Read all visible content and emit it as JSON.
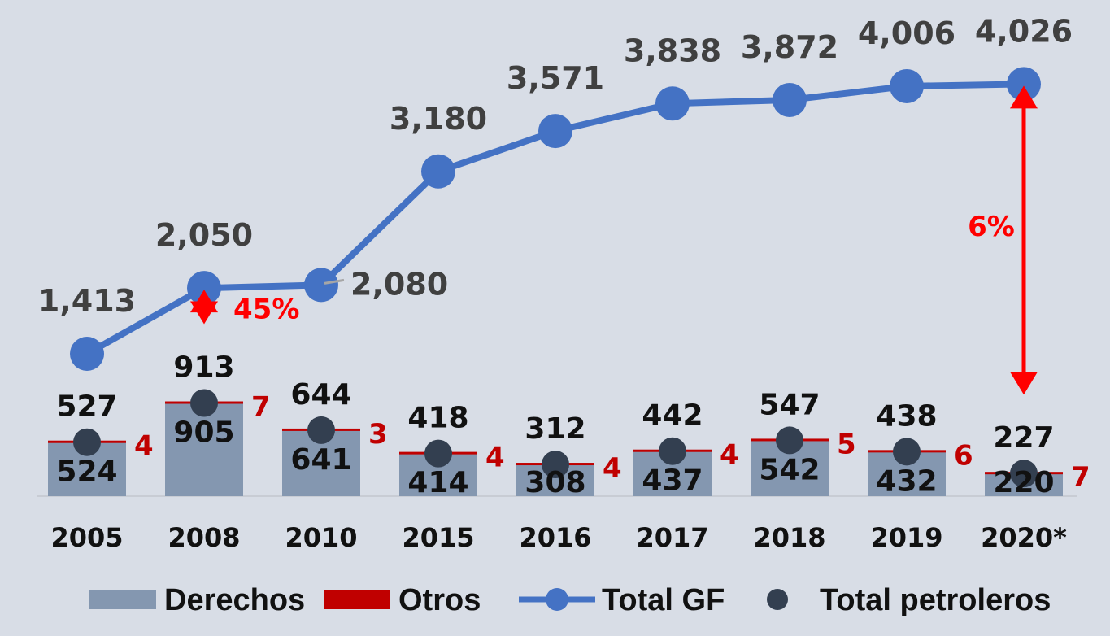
{
  "chart_data": {
    "type": "bar",
    "categories": [
      "2005",
      "2008",
      "2010",
      "2015",
      "2016",
      "2017",
      "2018",
      "2019",
      "2020*"
    ],
    "series": [
      {
        "name": "Derechos",
        "type": "bar",
        "color": "#8497b0",
        "values": [
          524,
          905,
          641,
          414,
          308,
          437,
          542,
          432,
          220
        ]
      },
      {
        "name": "Otros",
        "type": "bar-stacked",
        "color": "#c00000",
        "values": [
          4,
          7,
          3,
          4,
          4,
          4,
          5,
          6,
          7
        ]
      },
      {
        "name": "Total GF",
        "type": "line",
        "color": "#4472c4",
        "values": [
          1413,
          2050,
          2080,
          3180,
          3571,
          3838,
          3872,
          4006,
          4026
        ]
      },
      {
        "name": "Total petroleros",
        "type": "scatter",
        "color": "#333f50",
        "values": [
          527,
          913,
          644,
          418,
          312,
          442,
          547,
          438,
          227
        ]
      }
    ],
    "data_labels": {
      "total_gf": [
        "1,413",
        "2,050",
        "2,080",
        "3,180",
        "3,571",
        "3,838",
        "3,872",
        "4,006",
        "4,026"
      ],
      "total_petroleros": [
        "527",
        "913",
        "644",
        "418",
        "312",
        "442",
        "547",
        "438",
        "227"
      ],
      "derechos": [
        "524",
        "905",
        "641",
        "414",
        "308",
        "437",
        "542",
        "432",
        "220"
      ],
      "otros": [
        "4",
        "7",
        "3",
        "4",
        "4",
        "4",
        "5",
        "6",
        "7"
      ]
    },
    "annotations": [
      {
        "text": "45%",
        "category": "2008",
        "from": 2050,
        "to": 913
      },
      {
        "text": "6%",
        "category": "2020*",
        "from": 4026,
        "to": 227
      }
    ],
    "legend": {
      "position": "bottom",
      "items": [
        {
          "label": "Derechos",
          "marker": "bar",
          "color": "#8497b0"
        },
        {
          "label": "Otros",
          "marker": "bar",
          "color": "#c00000"
        },
        {
          "label": "Total GF",
          "marker": "line-dot",
          "color": "#4472c4"
        },
        {
          "label": "Total petroleros",
          "marker": "dot",
          "color": "#333f50"
        }
      ]
    },
    "grid": false,
    "ylim": [
      0,
      4300
    ]
  }
}
